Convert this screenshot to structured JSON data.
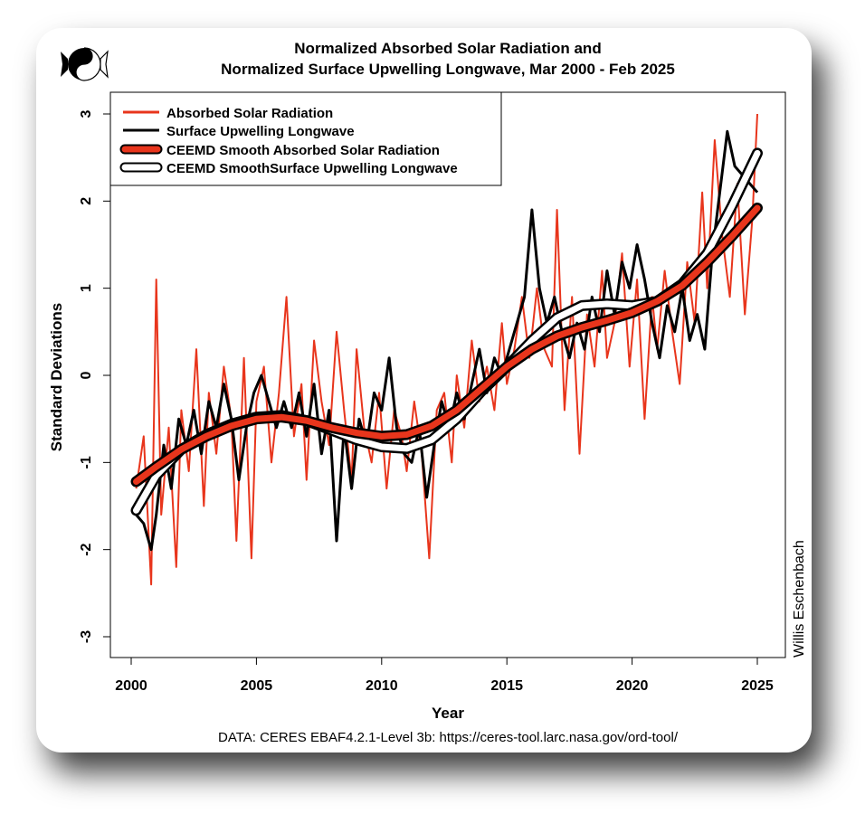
{
  "colors": {
    "accent": "#e8351c",
    "dark": "#000000",
    "background": "#ffffff"
  },
  "logo": {
    "icon": "yin-yang-fish-icon"
  },
  "chart_data": {
    "type": "line",
    "title_line1": "Normalized Absorbed Solar Radiation and",
    "title_line2": "Normalized Surface Upwelling Longwave, Mar 2000 - Feb 2025",
    "xlabel": "Year",
    "ylabel": "Standard Deviations",
    "xlim": [
      2000,
      2025
    ],
    "ylim": [
      -3,
      3
    ],
    "xticks": [
      "2000",
      "2005",
      "2010",
      "2015",
      "2020",
      "2025"
    ],
    "yticks": [
      "-3",
      "-2",
      "-1",
      "0",
      "1",
      "2",
      "3"
    ],
    "legend_position": "top-left",
    "grid": false,
    "legend": [
      "Absorbed Solar Radiation",
      "Surface Upwelling Longwave",
      "CEEMD Smooth Absorbed Solar Radiation",
      "CEEMD SmoothSurface Upwelling Longwave"
    ],
    "series": [
      {
        "name": "Absorbed Solar Radiation",
        "color": "#e8351c",
        "x": [
          2000.2,
          2000.5,
          2000.8,
          2001.0,
          2001.2,
          2001.5,
          2001.8,
          2002.0,
          2002.3,
          2002.6,
          2002.9,
          2003.1,
          2003.4,
          2003.7,
          2004.0,
          2004.2,
          2004.5,
          2004.8,
          2005.0,
          2005.3,
          2005.6,
          2005.9,
          2006.2,
          2006.5,
          2006.8,
          2007.0,
          2007.3,
          2007.6,
          2007.9,
          2008.2,
          2008.5,
          2008.8,
          2009.0,
          2009.3,
          2009.6,
          2009.9,
          2010.2,
          2010.5,
          2010.8,
          2011.0,
          2011.3,
          2011.6,
          2011.9,
          2012.2,
          2012.5,
          2012.8,
          2013.0,
          2013.3,
          2013.6,
          2013.9,
          2014.2,
          2014.5,
          2014.8,
          2015.0,
          2015.3,
          2015.6,
          2015.9,
          2016.2,
          2016.5,
          2016.8,
          2017.0,
          2017.3,
          2017.6,
          2017.9,
          2018.2,
          2018.5,
          2018.8,
          2019.0,
          2019.3,
          2019.6,
          2019.9,
          2020.2,
          2020.5,
          2020.8,
          2021.0,
          2021.3,
          2021.6,
          2021.9,
          2022.2,
          2022.5,
          2022.8,
          2023.0,
          2023.3,
          2023.6,
          2023.9,
          2024.2,
          2024.5,
          2024.8,
          2025.0
        ],
        "values": [
          -1.3,
          -0.7,
          -2.4,
          1.1,
          -1.6,
          -0.6,
          -2.2,
          -0.4,
          -1.1,
          0.3,
          -1.5,
          -0.2,
          -0.9,
          0.1,
          -0.5,
          -1.9,
          0.2,
          -2.1,
          -0.3,
          0.1,
          -1.0,
          -0.2,
          0.9,
          -0.7,
          -0.1,
          -1.2,
          0.4,
          -0.3,
          -0.8,
          0.5,
          -0.4,
          -1.2,
          0.3,
          -0.6,
          -1.0,
          -0.2,
          -1.3,
          -0.4,
          -0.7,
          -1.1,
          -0.3,
          -0.9,
          -2.1,
          -0.4,
          -0.2,
          -1.0,
          0.0,
          -0.6,
          0.4,
          -0.3,
          0.1,
          -0.4,
          0.6,
          -0.1,
          0.3,
          0.9,
          0.2,
          1.0,
          0.3,
          0.1,
          1.9,
          -0.4,
          0.9,
          -0.9,
          0.7,
          0.1,
          1.2,
          0.2,
          0.6,
          1.4,
          0.1,
          1.1,
          -0.5,
          0.9,
          0.3,
          1.2,
          0.5,
          -0.1,
          1.3,
          0.6,
          2.1,
          1.0,
          2.7,
          1.6,
          0.9,
          2.2,
          0.7,
          1.8,
          3.0
        ]
      },
      {
        "name": "Surface Upwelling Longwave",
        "color": "#000000",
        "x": [
          2000.2,
          2000.5,
          2000.8,
          2001.0,
          2001.3,
          2001.6,
          2001.9,
          2002.2,
          2002.5,
          2002.8,
          2003.1,
          2003.4,
          2003.7,
          2004.0,
          2004.3,
          2004.6,
          2004.9,
          2005.2,
          2005.5,
          2005.8,
          2006.1,
          2006.4,
          2006.7,
          2007.0,
          2007.3,
          2007.6,
          2007.9,
          2008.2,
          2008.5,
          2008.8,
          2009.1,
          2009.4,
          2009.7,
          2010.0,
          2010.3,
          2010.6,
          2010.9,
          2011.2,
          2011.5,
          2011.8,
          2012.1,
          2012.4,
          2012.7,
          2013.0,
          2013.3,
          2013.6,
          2013.9,
          2014.2,
          2014.5,
          2014.8,
          2015.1,
          2015.4,
          2015.7,
          2016.0,
          2016.3,
          2016.6,
          2016.9,
          2017.2,
          2017.5,
          2017.8,
          2018.1,
          2018.4,
          2018.7,
          2019.0,
          2019.3,
          2019.6,
          2019.9,
          2020.2,
          2020.5,
          2020.8,
          2021.1,
          2021.4,
          2021.7,
          2022.0,
          2022.3,
          2022.6,
          2022.9,
          2023.2,
          2023.5,
          2023.8,
          2024.1,
          2024.4,
          2024.7,
          2025.0
        ],
        "values": [
          -1.6,
          -1.7,
          -2.0,
          -1.6,
          -0.8,
          -1.3,
          -0.5,
          -0.8,
          -0.4,
          -0.9,
          -0.3,
          -0.6,
          -0.1,
          -0.5,
          -1.2,
          -0.6,
          -0.2,
          0.0,
          -0.3,
          -0.6,
          -0.3,
          -0.6,
          -0.2,
          -0.7,
          -0.1,
          -0.9,
          -0.4,
          -1.9,
          -0.6,
          -1.3,
          -0.5,
          -0.8,
          -0.2,
          -0.4,
          0.2,
          -0.6,
          -0.9,
          -1.0,
          -0.6,
          -1.4,
          -0.8,
          -0.3,
          -0.6,
          -0.2,
          -0.5,
          -0.1,
          0.3,
          -0.2,
          0.2,
          0.0,
          0.3,
          0.6,
          0.9,
          1.9,
          1.0,
          0.6,
          0.9,
          0.5,
          0.2,
          0.6,
          0.3,
          0.9,
          0.5,
          1.2,
          0.7,
          1.3,
          1.0,
          1.5,
          1.1,
          0.6,
          0.2,
          0.8,
          0.5,
          1.0,
          0.4,
          0.7,
          0.3,
          1.4,
          2.1,
          2.8,
          2.4,
          2.3,
          2.2,
          2.1
        ]
      },
      {
        "name": "CEEMD Smooth Absorbed Solar Radiation",
        "color": "#e8351c",
        "x": [
          2000.2,
          2001,
          2002,
          2003,
          2004,
          2005,
          2006,
          2007,
          2008,
          2009,
          2010,
          2011,
          2012,
          2013,
          2014,
          2015,
          2016,
          2017,
          2018,
          2019,
          2020,
          2021,
          2022,
          2023,
          2024,
          2025
        ],
        "values": [
          -1.22,
          -1.05,
          -0.85,
          -0.7,
          -0.58,
          -0.5,
          -0.48,
          -0.52,
          -0.6,
          -0.66,
          -0.7,
          -0.68,
          -0.58,
          -0.4,
          -0.15,
          0.1,
          0.3,
          0.45,
          0.55,
          0.63,
          0.72,
          0.85,
          1.03,
          1.3,
          1.6,
          1.92
        ]
      },
      {
        "name": "CEEMD SmoothSurface Upwelling Longwave",
        "color": "#ffffff",
        "x": [
          2000.2,
          2001,
          2002,
          2003,
          2004,
          2005,
          2006,
          2007,
          2008,
          2009,
          2010,
          2011,
          2012,
          2013,
          2014,
          2015,
          2016,
          2017,
          2018,
          2019,
          2020,
          2021,
          2022,
          2023,
          2024,
          2025
        ],
        "values": [
          -1.55,
          -1.15,
          -0.85,
          -0.68,
          -0.56,
          -0.48,
          -0.46,
          -0.52,
          -0.63,
          -0.74,
          -0.82,
          -0.84,
          -0.74,
          -0.5,
          -0.18,
          0.1,
          0.4,
          0.66,
          0.8,
          0.82,
          0.8,
          0.85,
          1.05,
          1.4,
          1.95,
          2.55
        ]
      }
    ]
  },
  "credit": "Willis Eschenbach",
  "footer": "DATA: CERES EBAF4.2.1-Level 3b: https://ceres-tool.larc.nasa.gov/ord-tool/"
}
